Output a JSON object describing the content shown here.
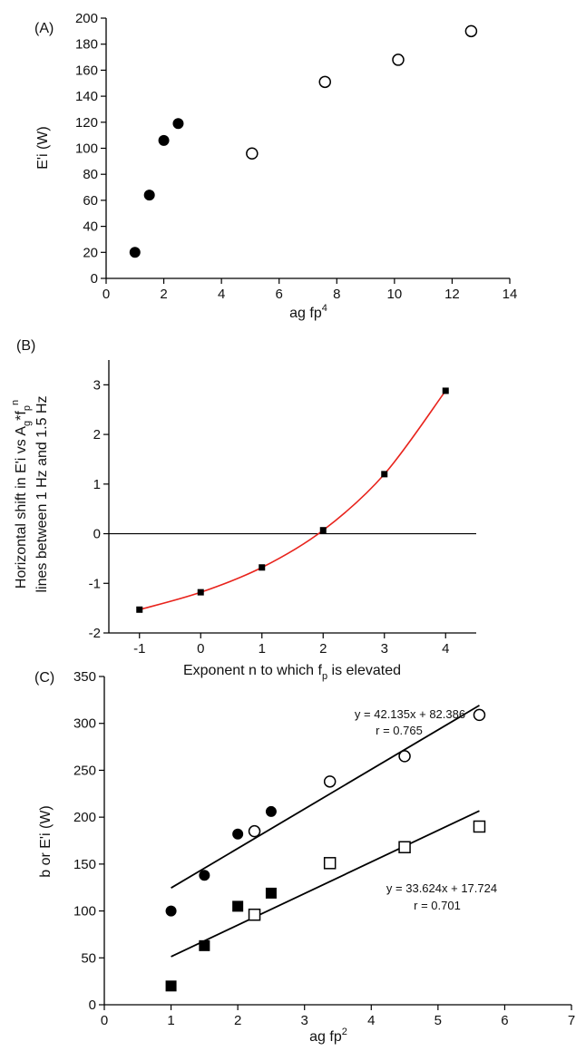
{
  "chart_data": [
    {
      "type": "scatter",
      "panel_label": "(A)",
      "xlabel": "ag fp",
      "xlabel_sup": "4",
      "ylabel": "E'i (W)",
      "xlim": [
        0,
        14
      ],
      "ylim": [
        0,
        200
      ],
      "xticks": [
        0,
        2,
        4,
        6,
        8,
        10,
        12,
        14
      ],
      "yticks": [
        0,
        20,
        40,
        60,
        80,
        100,
        120,
        140,
        160,
        180,
        200
      ],
      "grid": false,
      "series": [
        {
          "marker": "filled-circle",
          "x": [
            1.0,
            1.5,
            2.0,
            2.5
          ],
          "y": [
            20,
            64,
            106,
            119
          ]
        },
        {
          "marker": "open-circle",
          "x": [
            5.06,
            7.59,
            10.13,
            12.66
          ],
          "y": [
            96,
            151,
            168,
            190
          ]
        }
      ]
    },
    {
      "type": "line",
      "panel_label": "(B)",
      "xlabel": "Exponent n to which f",
      "xlabel_sub": "p",
      "xlabel_tail": " is elevated",
      "ylabel_line1": "Horizontal shift in E'i vs A",
      "ylabel_line1_sub1": "g",
      "ylabel_line1_mid": "*f",
      "ylabel_line1_sub2": "p",
      "ylabel_line1_sup": "n",
      "ylabel_line2": "lines between 1 Hz and 1.5 Hz",
      "xlim": [
        -1.5,
        4.5
      ],
      "ylim": [
        -2,
        3.5
      ],
      "xticks": [
        -1,
        0,
        1,
        2,
        3,
        4
      ],
      "yticks": [
        -2,
        -1,
        0,
        1,
        2,
        3
      ],
      "grid": false,
      "reference_line_y": 0,
      "series": [
        {
          "marker": "filled-square",
          "x": [
            -1,
            0,
            1,
            2,
            3,
            4
          ],
          "y": [
            -1.53,
            -1.18,
            -0.68,
            0.07,
            1.2,
            2.88
          ],
          "fit_color": "#e8231c"
        }
      ]
    },
    {
      "type": "scatter",
      "panel_label": "(C)",
      "xlabel": "ag fp",
      "xlabel_sup": "2",
      "ylabel": "b or E'i (W)",
      "xlim": [
        0,
        7
      ],
      "ylim": [
        0,
        350
      ],
      "xticks": [
        0,
        1,
        2,
        3,
        4,
        5,
        6,
        7
      ],
      "yticks": [
        0,
        50,
        100,
        150,
        200,
        250,
        300,
        350
      ],
      "grid": false,
      "series": [
        {
          "marker": "filled-circle",
          "x": [
            1.0,
            1.5,
            2.0,
            2.5
          ],
          "y": [
            100,
            138,
            182,
            206
          ]
        },
        {
          "marker": "open-circle",
          "x": [
            2.25,
            3.38,
            4.5,
            5.62
          ],
          "y": [
            185,
            238,
            265,
            309
          ]
        },
        {
          "marker": "filled-square",
          "x": [
            1.0,
            1.5,
            2.0,
            2.5
          ],
          "y": [
            20,
            63,
            105,
            119
          ]
        },
        {
          "marker": "open-square",
          "x": [
            2.25,
            3.38,
            4.5,
            5.62
          ],
          "y": [
            96,
            151,
            168,
            190
          ]
        }
      ],
      "fits": [
        {
          "slope": 42.135,
          "intercept": 82.386,
          "x_range": [
            1.0,
            5.62
          ],
          "equation": "y = 42.135x + 82.386",
          "r_text": "r = 0.765"
        },
        {
          "slope": 33.624,
          "intercept": 17.724,
          "x_range": [
            1.0,
            5.62
          ],
          "equation": "y = 33.624x + 17.724",
          "r_text": "r = 0.701"
        }
      ]
    }
  ]
}
